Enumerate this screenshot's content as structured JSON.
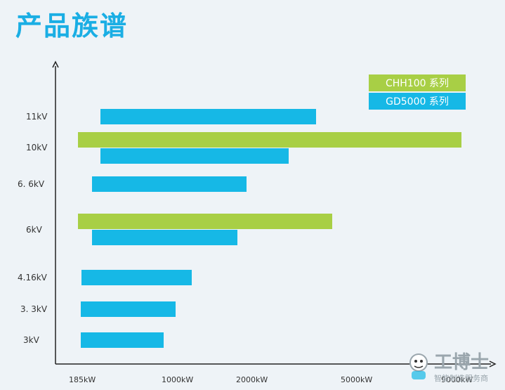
{
  "title": "产品族谱",
  "colors": {
    "green": "#a8cf45",
    "blue": "#16b8e6",
    "title": "#1aaee4",
    "axis": "#222222"
  },
  "legend": [
    {
      "label": "CHH100 系列",
      "color": "#a8cf45"
    },
    {
      "label": "GD5000 系列",
      "color": "#16b8e6"
    }
  ],
  "chart_data": {
    "type": "bar",
    "orientation": "horizontal-range",
    "y_categories": [
      "11kV",
      "10kV",
      "6. 6kV",
      "6kV",
      "4.16kV",
      "3. 3kV",
      "3kV"
    ],
    "x_ticks": [
      "185kW",
      "1000kW",
      "2000kW",
      "5000kW",
      "9000kW"
    ],
    "series": [
      {
        "name": "CHH100 系列",
        "ranges": [
          {
            "category": "10kV",
            "from": 185,
            "to": 9000
          },
          {
            "category": "6kV",
            "from": 185,
            "to": 4000
          }
        ]
      },
      {
        "name": "GD5000 系列",
        "ranges": [
          {
            "category": "11kV",
            "from": 500,
            "to": 3500
          },
          {
            "category": "10kV",
            "from": 500,
            "to": 2500
          },
          {
            "category": "6. 6kV",
            "from": 400,
            "to": 2000
          },
          {
            "category": "6kV",
            "from": 400,
            "to": 1900
          },
          {
            "category": "4.16kV",
            "from": 220,
            "to": 1000
          },
          {
            "category": "3. 3kV",
            "from": 200,
            "to": 800
          },
          {
            "category": "3kV",
            "from": 200,
            "to": 700
          }
        ]
      }
    ],
    "legend_position": "top-right",
    "grid": false
  },
  "watermark": {
    "brand": "工博士",
    "tagline": "智能制造服务商"
  }
}
